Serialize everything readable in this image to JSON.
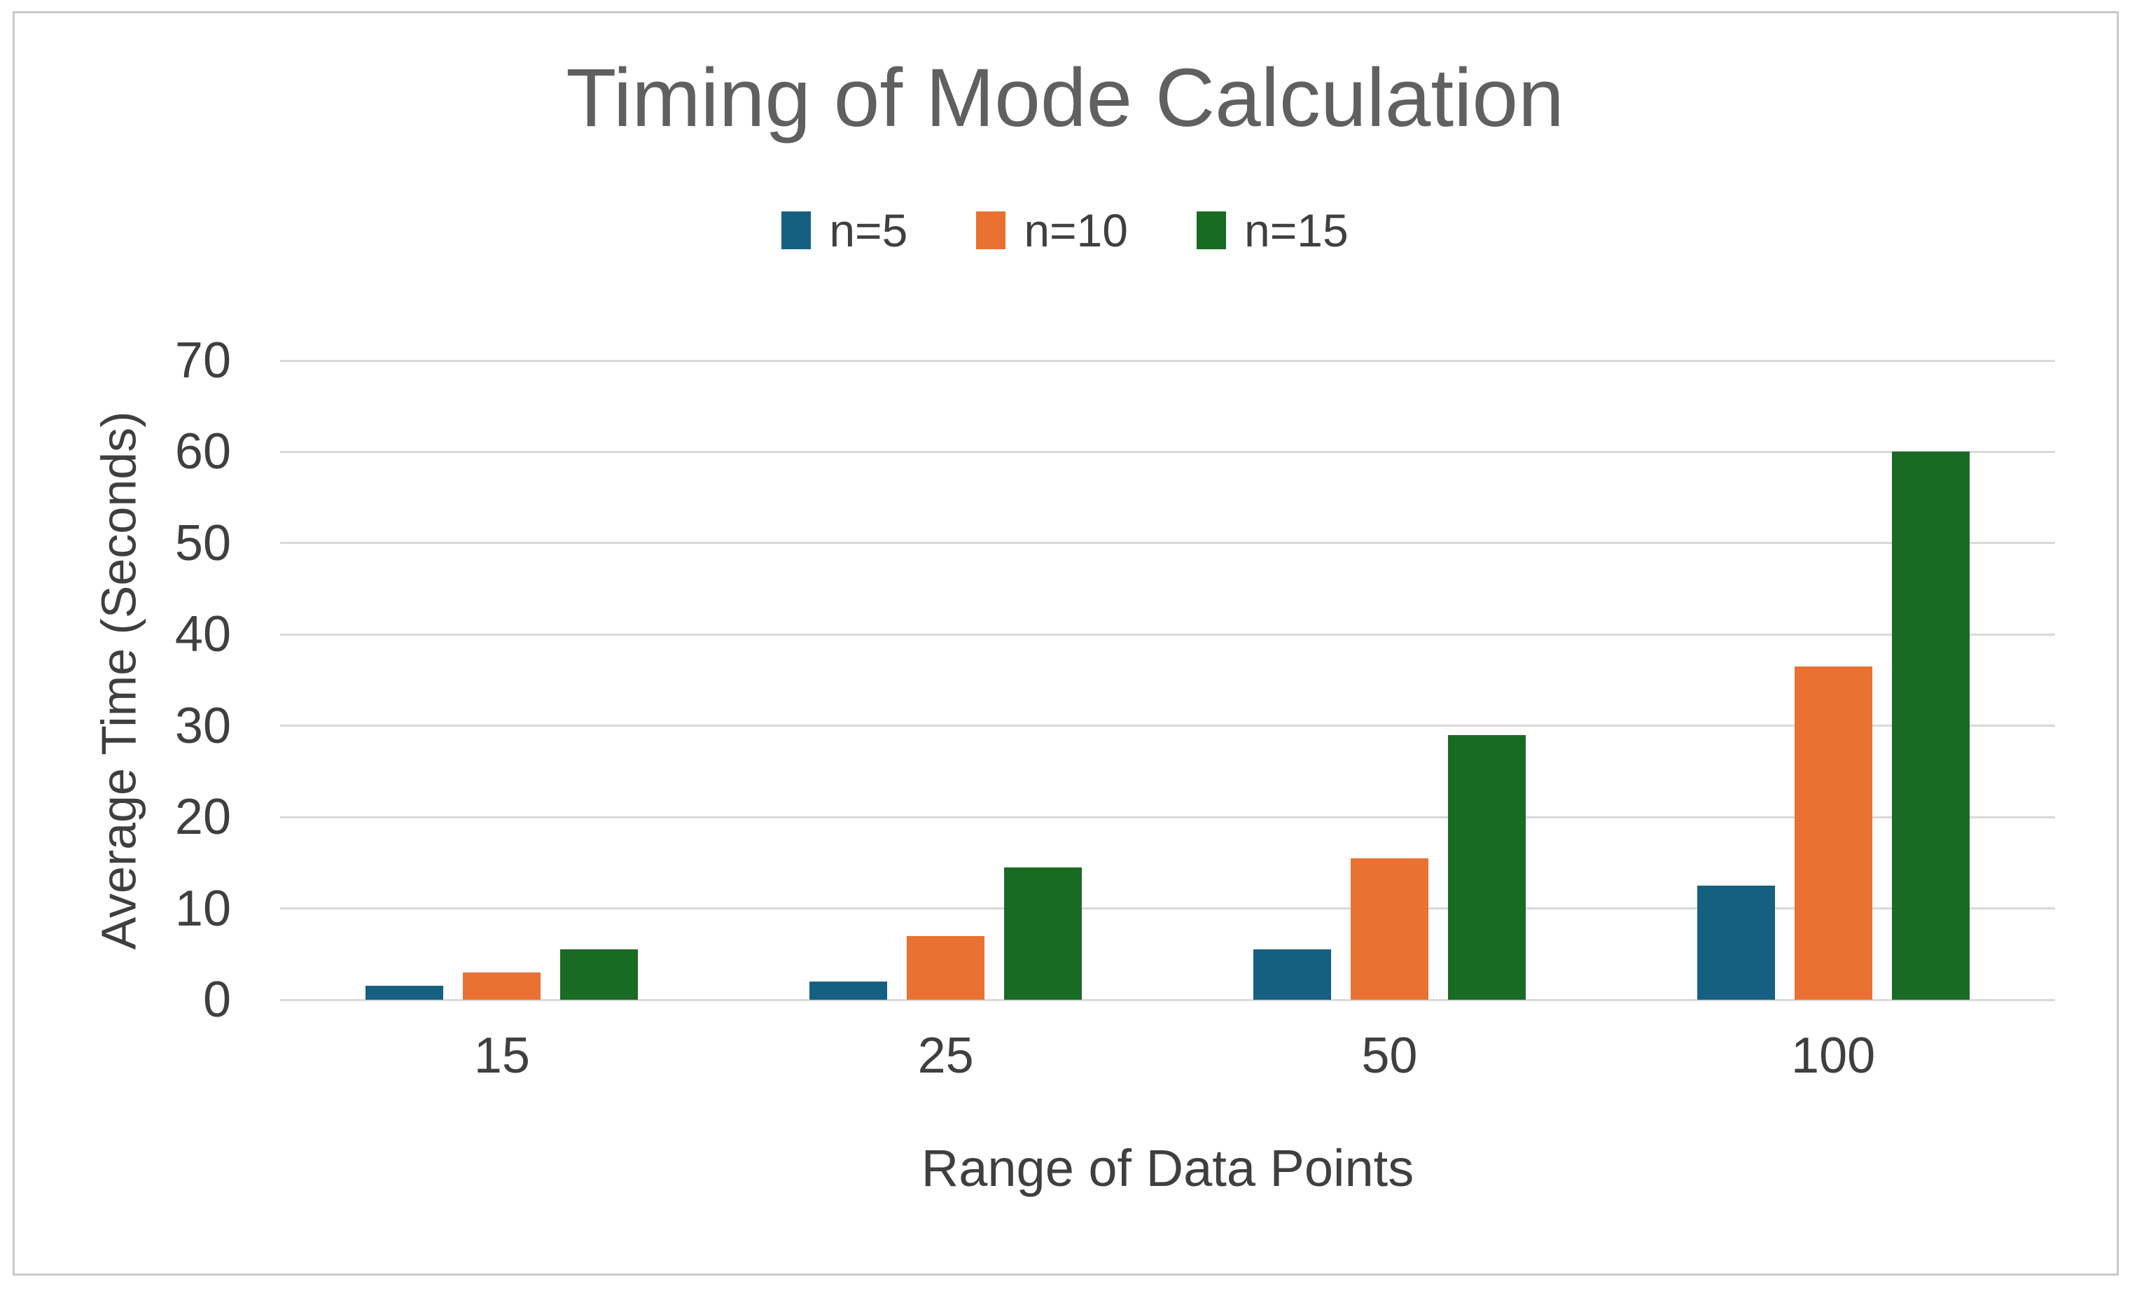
{
  "frame": {
    "border_color": "#c9c9c9",
    "background": "#ffffff"
  },
  "chart_data": {
    "type": "bar",
    "title": "Timing of Mode Calculation",
    "xlabel": "Range of Data Points",
    "ylabel": "Average Time (Seconds)",
    "categories": [
      "15",
      "25",
      "50",
      "100"
    ],
    "series": [
      {
        "name": "n=5",
        "color": "#156082",
        "values": [
          1.5,
          2,
          5.5,
          12.5
        ]
      },
      {
        "name": "n=10",
        "color": "#E97132",
        "values": [
          3,
          7,
          15.5,
          36.5
        ]
      },
      {
        "name": "n=15",
        "color": "#196B24",
        "values": [
          5.5,
          14.5,
          29,
          60
        ]
      }
    ],
    "ylim": [
      0,
      70
    ],
    "yticks": [
      0,
      10,
      20,
      30,
      40,
      50,
      60,
      70
    ],
    "grid": true,
    "gridline_color": "#d9d9d9",
    "legend_position": "top-center",
    "title_color": "#606060",
    "text_color": "#3f3f3f"
  }
}
